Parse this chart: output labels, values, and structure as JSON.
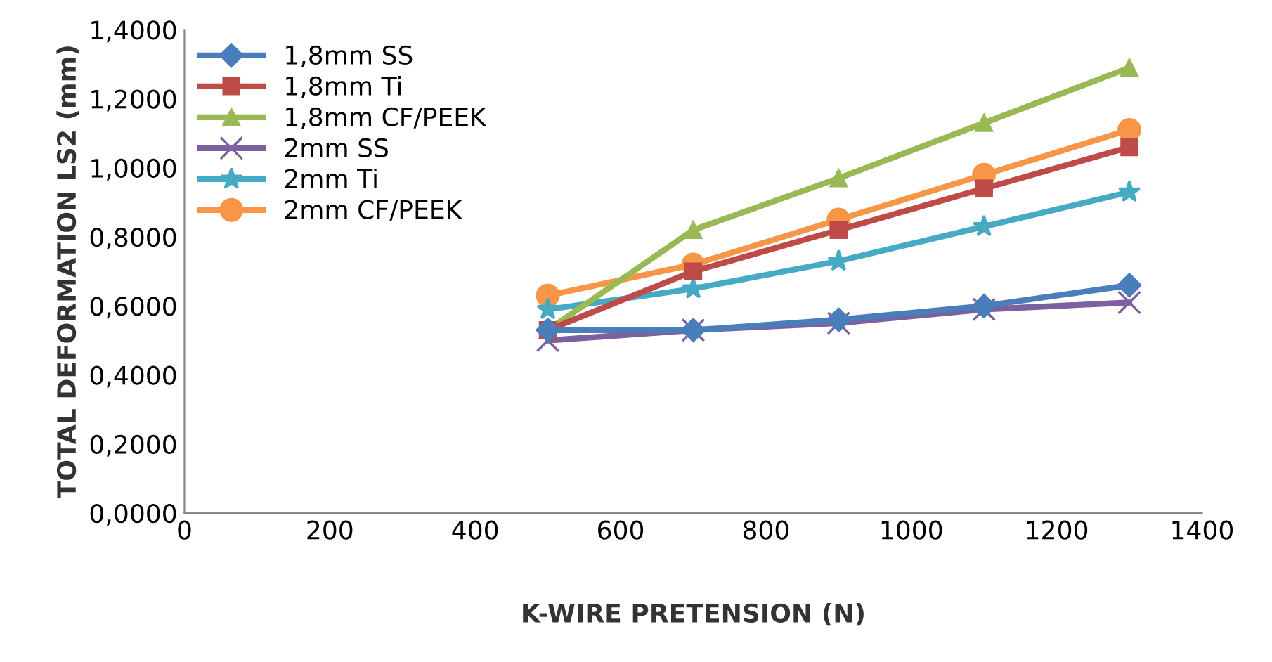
{
  "chart_data": {
    "type": "line",
    "xlabel": "K-WIRE PRETENSION (N)",
    "ylabel": "TOTAL DEFORMATION LS2 (mm)",
    "x": [
      500,
      700,
      900,
      1100,
      1300
    ],
    "series": [
      {
        "name": "1,8mm SS",
        "color": "#4a7ebb",
        "marker": "diamond",
        "values": [
          0.53,
          0.53,
          0.56,
          0.6,
          0.66
        ]
      },
      {
        "name": "1,8mm Ti",
        "color": "#be4b48",
        "marker": "square",
        "values": [
          0.53,
          0.7,
          0.82,
          0.94,
          1.06
        ]
      },
      {
        "name": "1,8mm CF/PEEK",
        "color": "#98b954",
        "marker": "triangle",
        "values": [
          0.53,
          0.82,
          0.97,
          1.13,
          1.29
        ]
      },
      {
        "name": "2mm SS",
        "color": "#7d60a0",
        "marker": "cross",
        "values": [
          0.5,
          0.53,
          0.55,
          0.59,
          0.61
        ]
      },
      {
        "name": "2mm Ti",
        "color": "#46aac5",
        "marker": "star",
        "values": [
          0.59,
          0.65,
          0.73,
          0.83,
          0.93
        ]
      },
      {
        "name": "2mm CF/PEEK",
        "color": "#f79646",
        "marker": "circle",
        "values": [
          0.63,
          0.72,
          0.85,
          0.98,
          1.11
        ]
      }
    ],
    "xlim": [
      0,
      1400
    ],
    "xticks": [
      0,
      200,
      400,
      600,
      800,
      1000,
      1200,
      1400
    ],
    "ylim": [
      0,
      1.4
    ],
    "yticks": [
      {
        "value": 0,
        "label": "0,0000"
      },
      {
        "value": 0.2,
        "label": "0,2000"
      },
      {
        "value": 0.4,
        "label": "0,4000"
      },
      {
        "value": 0.6,
        "label": "0,6000"
      },
      {
        "value": 0.8,
        "label": "0,8000"
      },
      {
        "value": 1.0,
        "label": "1,0000"
      },
      {
        "value": 1.2,
        "label": "1,2000"
      },
      {
        "value": 1.4,
        "label": "1,4000"
      }
    ],
    "grid": false,
    "legend": "top left",
    "line_style": "solid"
  }
}
